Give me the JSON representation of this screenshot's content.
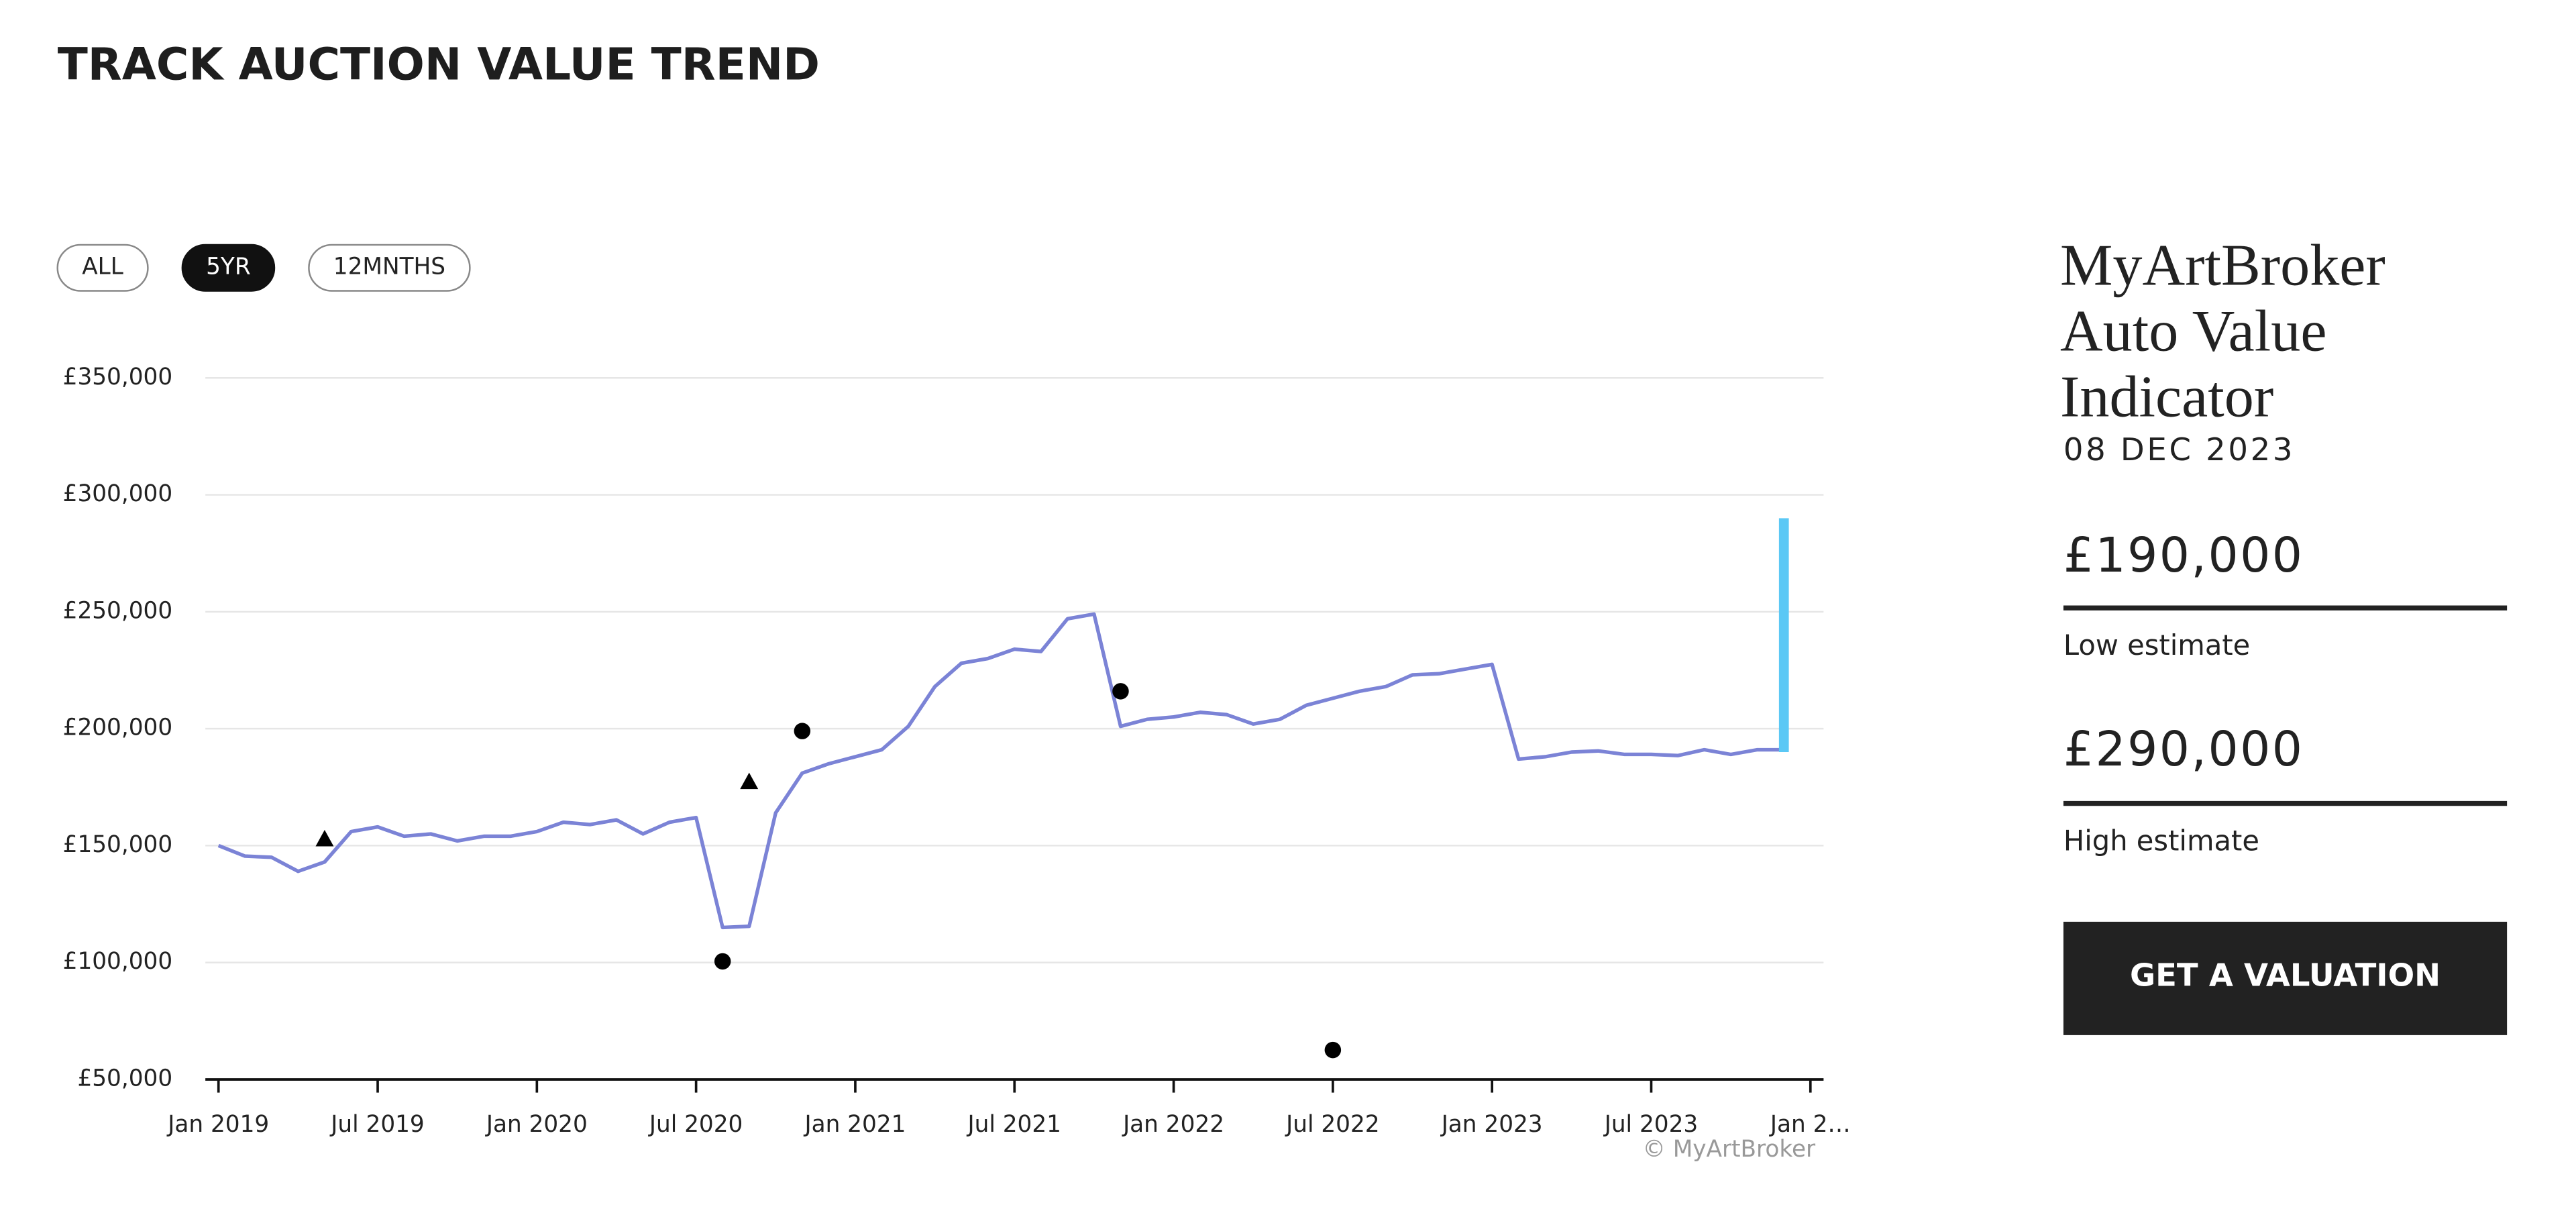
{
  "header": {
    "title": "TRACK AUCTION VALUE TREND"
  },
  "range_buttons": {
    "options": [
      "ALL",
      "5YR",
      "12MNTHS"
    ],
    "active": "5YR"
  },
  "chart_data": {
    "type": "line",
    "xlim": [
      "2019-01",
      "2024-01"
    ],
    "xticks": [
      {
        "value": "2019-01",
        "label": "Jan 2019"
      },
      {
        "value": "2019-07",
        "label": "Jul 2019"
      },
      {
        "value": "2020-01",
        "label": "Jan 2020"
      },
      {
        "value": "2020-07",
        "label": "Jul 2020"
      },
      {
        "value": "2021-01",
        "label": "Jan 2021"
      },
      {
        "value": "2021-07",
        "label": "Jul 2021"
      },
      {
        "value": "2022-01",
        "label": "Jan 2022"
      },
      {
        "value": "2022-07",
        "label": "Jul 2022"
      },
      {
        "value": "2023-01",
        "label": "Jan 2023"
      },
      {
        "value": "2023-07",
        "label": "Jul 2023"
      },
      {
        "value": "2024-01",
        "label": "Jan 2…"
      }
    ],
    "ylim": [
      50000,
      350000
    ],
    "yticks": [
      {
        "value": 50000,
        "label": "£50,000"
      },
      {
        "value": 100000,
        "label": "£100,000"
      },
      {
        "value": 150000,
        "label": "£150,000"
      },
      {
        "value": 200000,
        "label": "£200,000"
      },
      {
        "value": 250000,
        "label": "£250,000"
      },
      {
        "value": 300000,
        "label": "£300,000"
      },
      {
        "value": 350000,
        "label": "£350,000"
      }
    ],
    "grid": true,
    "series": [
      {
        "type": "line",
        "color": "#7b83d6",
        "x": [
          "2019-01",
          "2019-02",
          "2019-03",
          "2019-04",
          "2019-05",
          "2019-06",
          "2019-07",
          "2019-08",
          "2019-09",
          "2019-10",
          "2019-11",
          "2019-12",
          "2020-01",
          "2020-02",
          "2020-03",
          "2020-04",
          "2020-05",
          "2020-06",
          "2020-07",
          "2020-08",
          "2020-09",
          "2020-10",
          "2020-11",
          "2020-12",
          "2021-01",
          "2021-02",
          "2021-03",
          "2021-04",
          "2021-05",
          "2021-06",
          "2021-07",
          "2021-08",
          "2021-09",
          "2021-10",
          "2021-11",
          "2021-12",
          "2022-01",
          "2022-02",
          "2022-03",
          "2022-04",
          "2022-05",
          "2022-06",
          "2022-07",
          "2022-08",
          "2022-09",
          "2022-10",
          "2022-11",
          "2022-12",
          "2023-01",
          "2023-02",
          "2023-03",
          "2023-04",
          "2023-05",
          "2023-06",
          "2023-07",
          "2023-08",
          "2023-09",
          "2023-10",
          "2023-11",
          "2023-12"
        ],
        "values": [
          150000,
          145500,
          145000,
          139000,
          143000,
          156000,
          158000,
          154000,
          155000,
          152000,
          154000,
          154000,
          156000,
          160000,
          159000,
          161000,
          155000,
          160000,
          162000,
          115000,
          115500,
          164000,
          181000,
          185000,
          188000,
          191000,
          201000,
          218000,
          228000,
          230000,
          234000,
          233000,
          247000,
          249000,
          201000,
          204000,
          205000,
          207000,
          206000,
          202000,
          204000,
          210000,
          213000,
          216000,
          218000,
          223000,
          223500,
          225500,
          227500,
          187000,
          188000,
          190000,
          190500,
          189000,
          189000,
          188500,
          191000,
          189000,
          191000,
          191000
        ]
      },
      {
        "type": "scatter",
        "marker": "circle",
        "color": "#000000",
        "x": [
          "2020-08",
          "2020-11",
          "2021-11",
          "2022-07"
        ],
        "values": [
          100500,
          199000,
          216000,
          62600
        ]
      },
      {
        "type": "scatter",
        "marker": "triangle",
        "color": "#000000",
        "x": [
          "2019-05",
          "2020-09"
        ],
        "values": [
          152500,
          177000
        ]
      }
    ],
    "estimate": {
      "x": "2023-12",
      "color": "#5bc8f5",
      "low": {
        "value": 190000,
        "label": "£190,000"
      },
      "high": {
        "value": 290000,
        "label": "£290,000"
      }
    },
    "credit": "© MyArtBroker"
  },
  "panel": {
    "title_lines": [
      "MyArtBroker",
      "Auto Value",
      "Indicator"
    ],
    "date": "08 DEC 2023",
    "low_label": "Low estimate",
    "high_label": "High estimate",
    "button": "GET A VALUATION"
  }
}
